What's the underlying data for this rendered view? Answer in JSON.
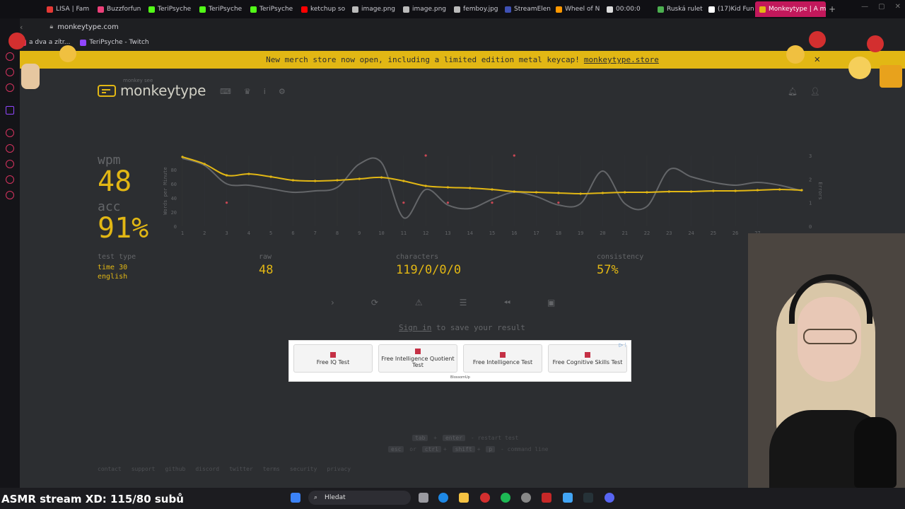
{
  "browser": {
    "tabs": [
      {
        "label": "LISA | Fam",
        "color": "#e53935"
      },
      {
        "label": "Buzzforfun",
        "color": "#ec407a"
      },
      {
        "label": "TeriPsyche",
        "color": "#53fc18"
      },
      {
        "label": "TeriPsyche",
        "color": "#53fc18"
      },
      {
        "label": "TeriPsyche",
        "color": "#53fc18"
      },
      {
        "label": "ketchup so",
        "color": "#ff0000"
      },
      {
        "label": "image.png",
        "color": "#bbbbbb"
      },
      {
        "label": "image.png",
        "color": "#bbbbbb"
      },
      {
        "label": "femboy.jpg",
        "color": "#bbbbbb"
      },
      {
        "label": "StreamElen",
        "color": "#3f51b5"
      },
      {
        "label": "Wheel of N",
        "color": "#ff9800"
      },
      {
        "label": "00:00:0",
        "color": "#dddddd"
      },
      {
        "label": "Ruská rulet",
        "color": "#4caf50"
      },
      {
        "label": "(17)Kid Fun",
        "color": "#ffffff"
      }
    ],
    "active_tab": "Monkeytype | A mini",
    "url": "monkeytype.com",
    "bookmarks": [
      "a dva a zítr...",
      "TeriPsyche - Twitch"
    ]
  },
  "banner": {
    "text": "New merch store now open, including a limited edition metal keycap!",
    "link": "monkeytype.store"
  },
  "logo": {
    "text": "monkeytype",
    "sub": "monkey see"
  },
  "result": {
    "wpm_label": "wpm",
    "wpm": "48",
    "acc_label": "acc",
    "acc": "91%",
    "test_type_label": "test type",
    "test_type": "time 30",
    "language": "english",
    "raw_label": "raw",
    "raw": "48",
    "characters_label": "characters",
    "characters": "119/0/0/0",
    "consistency_label": "consistency",
    "consistency": "57%"
  },
  "signin": {
    "link": "Sign in",
    "text": "to save your result"
  },
  "ad": {
    "buttons": [
      "Free IQ Test",
      "Free Intelligence Quotient Test",
      "Free Intelligence Test",
      "Free Cognitive Skills Test"
    ],
    "brand": "BlossomUp"
  },
  "hints": {
    "restart_keys": [
      "tab",
      "enter"
    ],
    "restart_plus": "+",
    "restart_text": "- restart test",
    "cmd_keys_1": [
      "esc"
    ],
    "cmd_or": "or",
    "cmd_keys_2": [
      "ctrl",
      "shift",
      "p"
    ],
    "cmd_text": "- command line"
  },
  "footer": [
    "contact",
    "support",
    "github",
    "discord",
    "twitter",
    "terms",
    "security",
    "privacy"
  ],
  "stream_overlay": "ASMR stream XD: 115/80 subů",
  "taskbar": {
    "search": "Hledat"
  },
  "colors": {
    "accent": "#e2b714",
    "bg": "#2c2e31",
    "sub": "#646669",
    "error": "#ca4754"
  },
  "chart_data": {
    "type": "line",
    "x": [
      1,
      2,
      3,
      4,
      5,
      6,
      7,
      8,
      9,
      10,
      11,
      12,
      13,
      14,
      15,
      16,
      17,
      18,
      19,
      20,
      21,
      22,
      23,
      24,
      25,
      26,
      27,
      28,
      29
    ],
    "ylabel": "Words per Minute",
    "y2label": "Errors",
    "ylim": [
      0,
      100
    ],
    "y2lim": [
      0,
      3
    ],
    "yticks": [
      0,
      20,
      40,
      60,
      80
    ],
    "y2ticks": [
      0,
      1,
      2,
      3
    ],
    "xticks": [
      1,
      2,
      3,
      4,
      5,
      6,
      7,
      8,
      9,
      10,
      11,
      12,
      13,
      14,
      15,
      16,
      17,
      18,
      19,
      20,
      21,
      22,
      23,
      24,
      25,
      26,
      27
    ],
    "series": [
      {
        "role": "wpm",
        "color": "#e2b714",
        "values": [
          98,
          88,
          72,
          74,
          70,
          65,
          64,
          65,
          67,
          69,
          64,
          57,
          55,
          54,
          52,
          49,
          48,
          47,
          46,
          47,
          48,
          48,
          49,
          49,
          50,
          50,
          51,
          52,
          51
        ]
      },
      {
        "role": "raw",
        "color": "#646669",
        "values": [
          96,
          86,
          60,
          58,
          53,
          48,
          50,
          55,
          88,
          90,
          12,
          52,
          30,
          25,
          38,
          48,
          42,
          30,
          32,
          78,
          32,
          28,
          80,
          70,
          62,
          58,
          62,
          58,
          50
        ]
      },
      {
        "role": "errors",
        "color": "#ca4754",
        "points": [
          [
            3,
            1
          ],
          [
            11,
            1
          ],
          [
            12,
            3
          ],
          [
            13,
            1
          ],
          [
            15,
            1
          ],
          [
            16,
            3
          ],
          [
            18,
            1
          ]
        ]
      }
    ]
  }
}
